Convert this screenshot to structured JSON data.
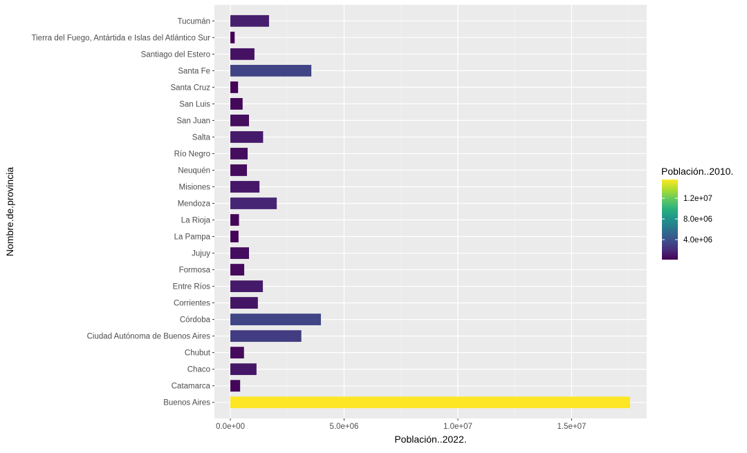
{
  "chart_data": {
    "type": "bar",
    "orientation": "horizontal",
    "xlabel": "Población..2022.",
    "ylabel": "Nombre.de.provincia",
    "xlim": [
      -700000,
      18300000
    ],
    "x_ticks": [
      0,
      5000000,
      10000000,
      15000000
    ],
    "x_tick_labels": [
      "0.0e+00",
      "5.0e+06",
      "1.0e+07",
      "1.5e+07"
    ],
    "grid": true,
    "categories": [
      "Tucumán",
      "Tierra del Fuego, Antártida e Islas del Atlántico Sur",
      "Santiago del Estero",
      "Santa Fe",
      "Santa Cruz",
      "San Luis",
      "San Juan",
      "Salta",
      "Río Negro",
      "Neuquén",
      "Misiones",
      "Mendoza",
      "La Rioja",
      "La Pampa",
      "Jujuy",
      "Formosa",
      "Entre Ríos",
      "Corrientes",
      "Córdoba",
      "Ciudad Autónoma de Buenos Aires",
      "Chubut",
      "Chaco",
      "Catamarca",
      "Buenos Aires"
    ],
    "values": [
      1700000,
      190000,
      1060000,
      3560000,
      340000,
      540000,
      820000,
      1440000,
      760000,
      730000,
      1280000,
      2040000,
      380000,
      360000,
      820000,
      610000,
      1430000,
      1210000,
      3980000,
      3120000,
      600000,
      1150000,
      430000,
      17570000
    ],
    "color_values": [
      1450000,
      127000,
      874000,
      3195000,
      274000,
      432000,
      681000,
      1214000,
      638000,
      551000,
      1101000,
      1738000,
      333000,
      318000,
      673000,
      530000,
      1235000,
      992000,
      3308000,
      2890000,
      509000,
      1055000,
      368000,
      15625000
    ],
    "legend": {
      "title": "Población..2010.",
      "position": "right",
      "scale": "viridis",
      "range": [
        127000,
        15625000
      ],
      "ticks": [
        4000000,
        8000000,
        12000000
      ],
      "tick_labels": [
        "4.0e+06",
        "8.0e+06",
        "1.2e+07"
      ]
    }
  }
}
